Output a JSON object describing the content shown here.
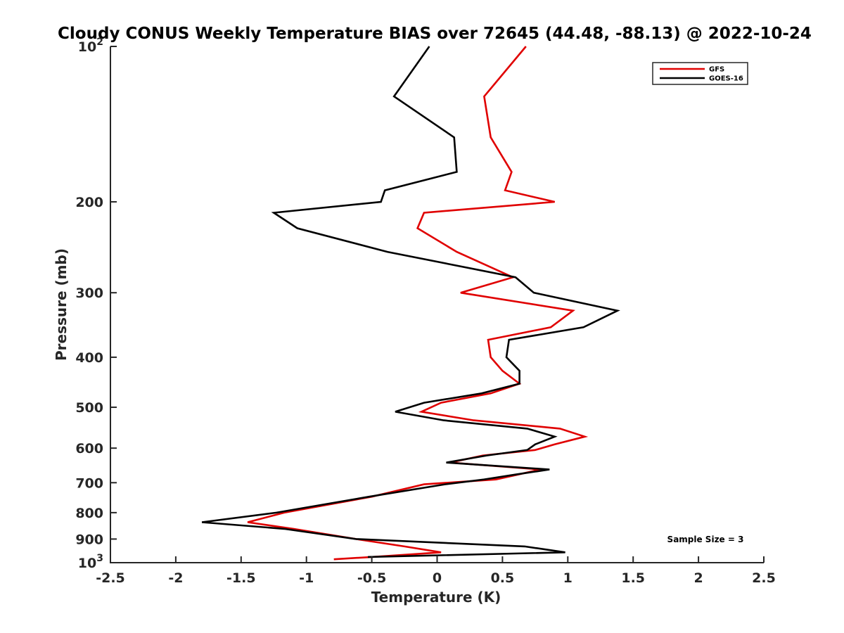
{
  "chart_data": {
    "type": "line",
    "title": "Cloudy CONUS Weekly Temperature BIAS over 72645 (44.48, -88.13) @ 2022-10-24",
    "xlabel": "Temperature (K)",
    "ylabel": "Pressure (mb)",
    "xlim": [
      -2.5,
      2.5
    ],
    "ylim": [
      1000,
      100
    ],
    "y_scale": "log-reversed",
    "x_ticks": [
      "-2.5",
      "-2",
      "-1.5",
      "-1",
      "-0.5",
      "0",
      "0.5",
      "1",
      "1.5",
      "2",
      "2.5"
    ],
    "x_tick_values": [
      -2.5,
      -2,
      -1.5,
      -1,
      -0.5,
      0,
      0.5,
      1,
      1.5,
      2,
      2.5
    ],
    "y_ticks": [
      {
        "value": 100,
        "base": "10",
        "exp": "2"
      },
      {
        "value": 200,
        "label": "200"
      },
      {
        "value": 300,
        "label": "300"
      },
      {
        "value": 400,
        "label": "400"
      },
      {
        "value": 500,
        "label": "500"
      },
      {
        "value": 600,
        "label": "600"
      },
      {
        "value": 700,
        "label": "700"
      },
      {
        "value": 800,
        "label": "800"
      },
      {
        "value": 900,
        "label": "900"
      },
      {
        "value": 1000,
        "base": "10",
        "exp": "3"
      }
    ],
    "grid": false,
    "legend_position": "top-right",
    "annotation": "Sample Size = 3",
    "series": [
      {
        "name": "GFS",
        "color": "#e00000",
        "points": [
          [
            0.68,
            100
          ],
          [
            0.36,
            125
          ],
          [
            0.41,
            150
          ],
          [
            0.57,
            175
          ],
          [
            0.52,
            190
          ],
          [
            0.9,
            200
          ],
          [
            -0.1,
            210
          ],
          [
            -0.15,
            225
          ],
          [
            0.15,
            250
          ],
          [
            0.58,
            280
          ],
          [
            0.18,
            300
          ],
          [
            1.04,
            325
          ],
          [
            0.87,
            350
          ],
          [
            0.39,
            370
          ],
          [
            0.41,
            400
          ],
          [
            0.5,
            425
          ],
          [
            0.63,
            450
          ],
          [
            0.41,
            470
          ],
          [
            0.03,
            490
          ],
          [
            -0.12,
            510
          ],
          [
            0.28,
            530
          ],
          [
            0.94,
            550
          ],
          [
            1.13,
            570
          ],
          [
            0.9,
            590
          ],
          [
            0.75,
            605
          ],
          [
            0.35,
            620
          ],
          [
            0.1,
            640
          ],
          [
            0.79,
            660
          ],
          [
            0.62,
            675
          ],
          [
            0.45,
            690
          ],
          [
            -0.1,
            705
          ],
          [
            -0.5,
            745
          ],
          [
            -1.17,
            800
          ],
          [
            -1.45,
            835
          ],
          [
            -1.1,
            860
          ],
          [
            -0.62,
            900
          ],
          [
            -0.25,
            930
          ],
          [
            0.03,
            955
          ],
          [
            -0.5,
            975
          ],
          [
            -0.79,
            985
          ]
        ]
      },
      {
        "name": "GOES-16",
        "color": "#000000",
        "points": [
          [
            -0.06,
            100
          ],
          [
            -0.33,
            125
          ],
          [
            0.13,
            150
          ],
          [
            0.15,
            175
          ],
          [
            -0.4,
            190
          ],
          [
            -0.43,
            200
          ],
          [
            -1.25,
            210
          ],
          [
            -1.07,
            225
          ],
          [
            -0.38,
            250
          ],
          [
            0.6,
            280
          ],
          [
            0.74,
            300
          ],
          [
            1.38,
            325
          ],
          [
            1.12,
            350
          ],
          [
            0.55,
            370
          ],
          [
            0.53,
            400
          ],
          [
            0.63,
            425
          ],
          [
            0.63,
            450
          ],
          [
            0.34,
            470
          ],
          [
            -0.1,
            490
          ],
          [
            -0.32,
            510
          ],
          [
            0.05,
            530
          ],
          [
            0.69,
            550
          ],
          [
            0.9,
            570
          ],
          [
            0.75,
            590
          ],
          [
            0.69,
            605
          ],
          [
            0.38,
            620
          ],
          [
            0.07,
            640
          ],
          [
            0.86,
            660
          ],
          [
            0.6,
            675
          ],
          [
            0.36,
            690
          ],
          [
            0.06,
            705
          ],
          [
            -0.52,
            745
          ],
          [
            -1.23,
            800
          ],
          [
            -1.8,
            835
          ],
          [
            -1.17,
            860
          ],
          [
            -0.62,
            900
          ],
          [
            0.67,
            930
          ],
          [
            0.98,
            955
          ],
          [
            -0.53,
            975
          ]
        ]
      }
    ]
  }
}
